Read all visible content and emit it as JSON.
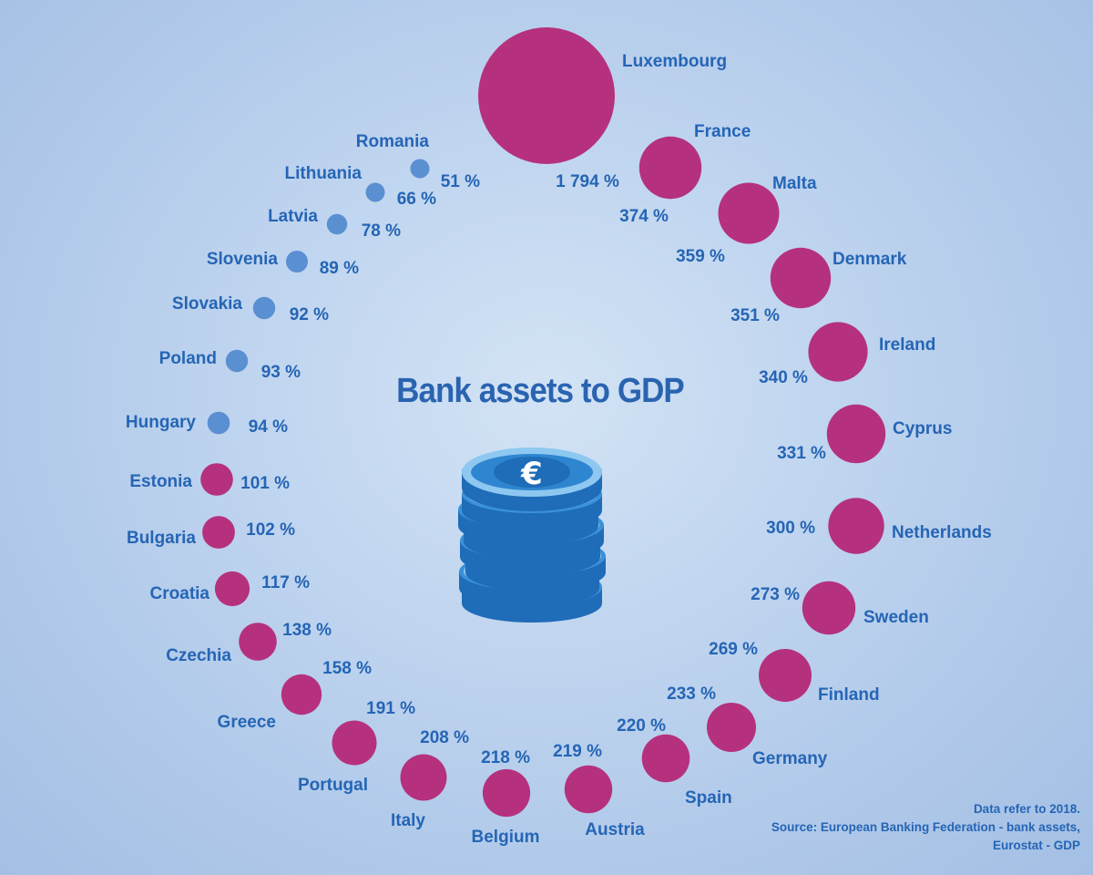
{
  "colors": {
    "high": "#b5317e",
    "low": "#5a8fd2",
    "text": "#2565b5",
    "coin": "#2f86d0"
  },
  "icons": {
    "coin": "euro-coin-stack-icon"
  },
  "chart_data": {
    "type": "bubble",
    "title": "Bank assets to GDP",
    "unit": "%",
    "series": [
      {
        "country": "Luxembourg",
        "value": 1794,
        "label": "1 794 %",
        "group": "high"
      },
      {
        "country": "France",
        "value": 374,
        "label": "374 %",
        "group": "high"
      },
      {
        "country": "Malta",
        "value": 359,
        "label": "359 %",
        "group": "high"
      },
      {
        "country": "Denmark",
        "value": 351,
        "label": "351 %",
        "group": "high"
      },
      {
        "country": "Ireland",
        "value": 340,
        "label": "340 %",
        "group": "high"
      },
      {
        "country": "Cyprus",
        "value": 331,
        "label": "331 %",
        "group": "high"
      },
      {
        "country": "Netherlands",
        "value": 300,
        "label": "300 %",
        "group": "high"
      },
      {
        "country": "Sweden",
        "value": 273,
        "label": "273 %",
        "group": "high"
      },
      {
        "country": "Finland",
        "value": 269,
        "label": "269 %",
        "group": "high"
      },
      {
        "country": "Germany",
        "value": 233,
        "label": "233 %",
        "group": "high"
      },
      {
        "country": "Spain",
        "value": 220,
        "label": "220 %",
        "group": "high"
      },
      {
        "country": "Austria",
        "value": 219,
        "label": "219 %",
        "group": "high"
      },
      {
        "country": "Belgium",
        "value": 218,
        "label": "218 %",
        "group": "high"
      },
      {
        "country": "Italy",
        "value": 208,
        "label": "208 %",
        "group": "high"
      },
      {
        "country": "Portugal",
        "value": 191,
        "label": "191 %",
        "group": "high"
      },
      {
        "country": "Greece",
        "value": 158,
        "label": "158 %",
        "group": "high"
      },
      {
        "country": "Czechia",
        "value": 138,
        "label": "138 %",
        "group": "high"
      },
      {
        "country": "Croatia",
        "value": 117,
        "label": "117 %",
        "group": "high"
      },
      {
        "country": "Bulgaria",
        "value": 102,
        "label": "102 %",
        "group": "high"
      },
      {
        "country": "Estonia",
        "value": 101,
        "label": "101 %",
        "group": "high"
      },
      {
        "country": "Hungary",
        "value": 94,
        "label": "94 %",
        "group": "low"
      },
      {
        "country": "Poland",
        "value": 93,
        "label": "93 %",
        "group": "low"
      },
      {
        "country": "Slovakia",
        "value": 92,
        "label": "92 %",
        "group": "low"
      },
      {
        "country": "Slovenia",
        "value": 89,
        "label": "89 %",
        "group": "low"
      },
      {
        "country": "Latvia",
        "value": 78,
        "label": "78 %",
        "group": "low"
      },
      {
        "country": "Lithuania",
        "value": 66,
        "label": "66 %",
        "group": "low"
      },
      {
        "country": "Romania",
        "value": 51,
        "label": "51 %",
        "group": "low"
      }
    ]
  },
  "source_note": {
    "line1": "Data refer to 2018.",
    "line2": "Source: European Banking Federation - bank assets,",
    "line3": "Eurostat - GDP"
  }
}
